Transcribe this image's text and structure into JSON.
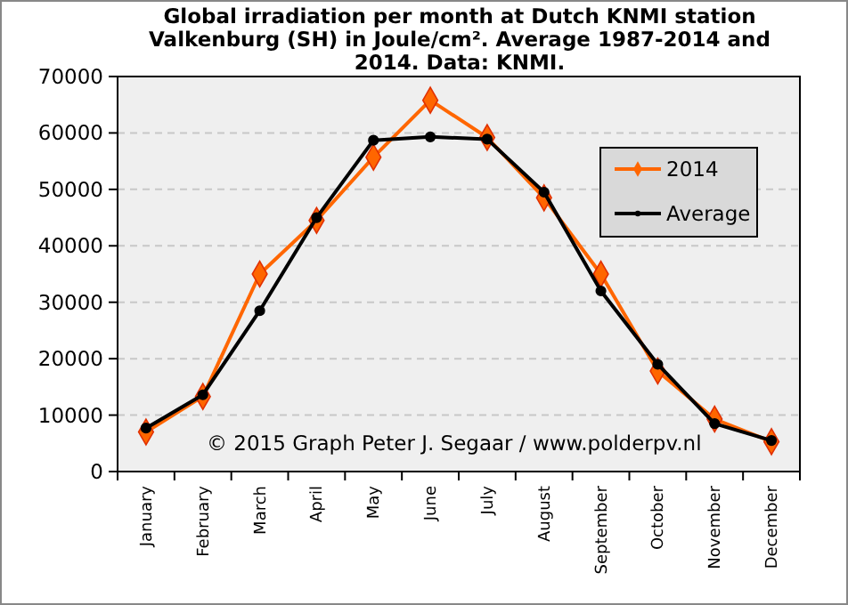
{
  "chart_data": {
    "type": "line",
    "title": "Global irradiation per month at Dutch KNMI station Valkenburg (SH) in Joule/cm². Average 1987-2014 and 2014. Data: KNMI.",
    "categories": [
      "January",
      "February",
      "March",
      "April",
      "May",
      "June",
      "July",
      "August",
      "September",
      "October",
      "November",
      "December"
    ],
    "series": [
      {
        "name": "2014",
        "color": "#ff6600",
        "marker": "diamond",
        "values": [
          7000,
          13300,
          35000,
          44500,
          55700,
          65800,
          59200,
          48500,
          35000,
          17800,
          9300,
          5300
        ]
      },
      {
        "name": "Average",
        "color": "#000000",
        "marker": "circle",
        "values": [
          7700,
          13600,
          28500,
          45000,
          58700,
          59300,
          58900,
          49500,
          32000,
          19000,
          8500,
          5500
        ]
      }
    ],
    "ylim": [
      0,
      70000
    ],
    "yticks": [
      0,
      10000,
      20000,
      30000,
      40000,
      50000,
      60000,
      70000
    ],
    "grid": "y",
    "legend": "top right",
    "annotations": [
      "© 2015 Graph  Peter J. Segaar / www.polderpv.nl"
    ]
  }
}
